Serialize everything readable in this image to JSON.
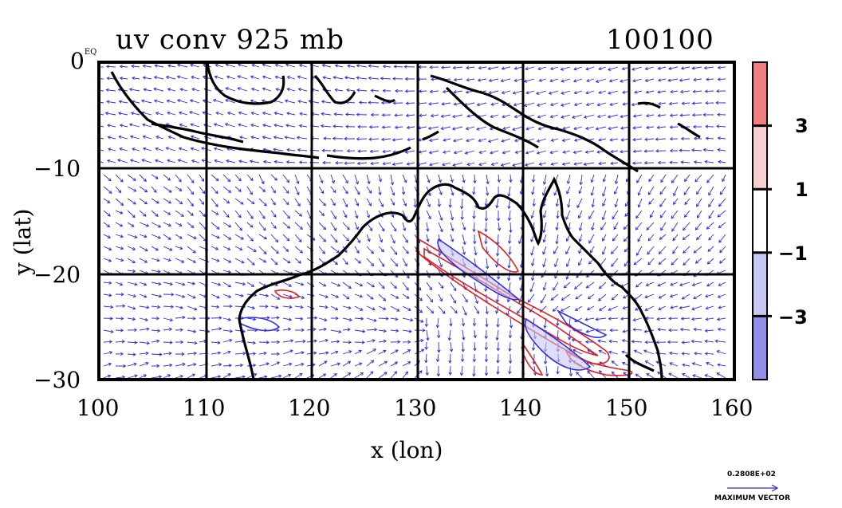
{
  "title_left": "uv conv 925 mb",
  "title_right": "100100",
  "x_axis": {
    "label": "x (lon)",
    "ticks": [
      "100",
      "110",
      "120",
      "130",
      "140",
      "150",
      "160"
    ],
    "range": [
      100,
      160
    ]
  },
  "y_axis": {
    "label": "y (lat)",
    "ticks": [
      "0",
      "−10",
      "−20",
      "−30"
    ],
    "top_tick_suffix": "EQ",
    "range": [
      -30,
      0
    ]
  },
  "colorbar": {
    "labels": [
      "3",
      "1",
      "−1",
      "−3"
    ],
    "colors": [
      "#f08080",
      "#f8d0d0",
      "#ffffff",
      "#c8c8f4",
      "#9090e8"
    ]
  },
  "max_vector": {
    "value": "0.2808E+02",
    "label": "MAXIMUM VECTOR"
  },
  "colors": {
    "vector": "#2b2bd9",
    "positive_contour": "#e02020",
    "negative_contour": "#3030e0",
    "coast": "#000000"
  }
}
